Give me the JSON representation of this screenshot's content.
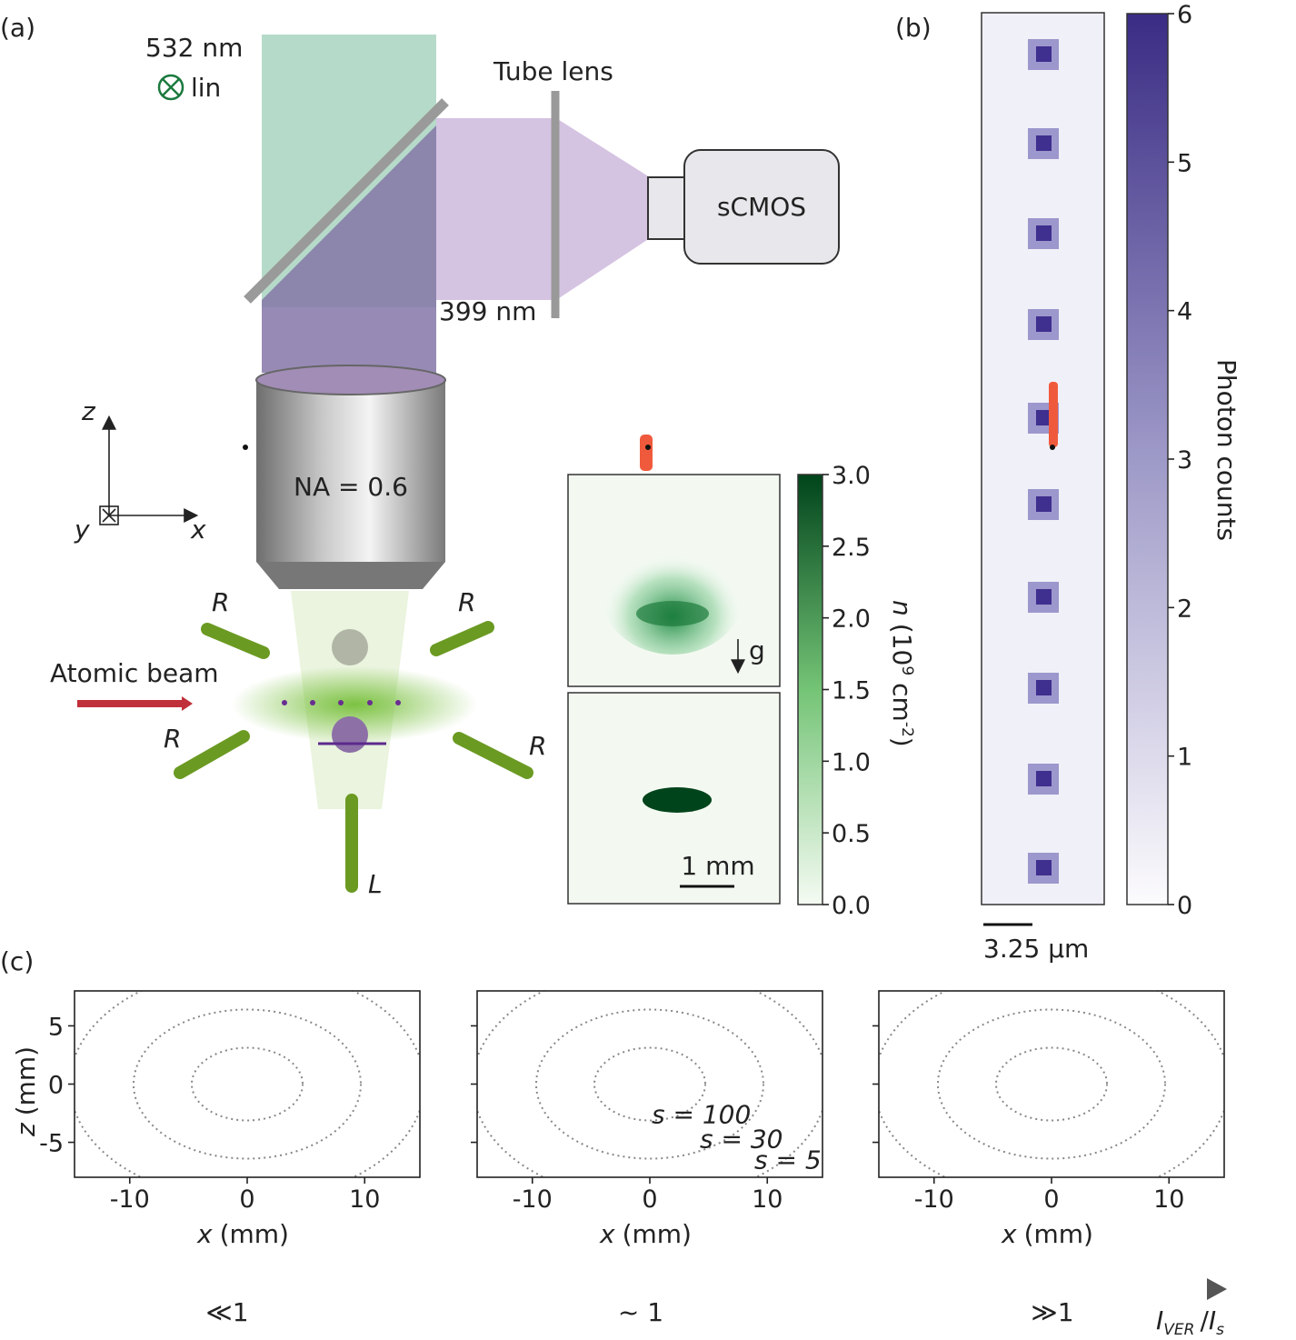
{
  "panel_a": {
    "label": "(a)",
    "wavelength_green": "532 nm",
    "polarization": "lin",
    "tube_lens": "Tube lens",
    "camera": "sCMOS",
    "wavelength_blue": "399 nm",
    "objective": "NA = 0.6",
    "axes": {
      "z": "z",
      "y": "y",
      "x": "x"
    },
    "beam_labels": [
      "R",
      "R",
      "R",
      "R",
      "L"
    ],
    "atomic_beam": "Atomic beam",
    "gravity": "g",
    "scale_bar": "1 mm",
    "colorbar": {
      "label": {
        "symbol": "n",
        "prefix": "(10",
        "exponent": "9",
        "unit": "cm",
        "unit_exponent": "-2",
        "suffix": ")"
      },
      "lim": [
        0,
        3
      ],
      "ticks": [
        {
          "value": 0,
          "label": "0.0"
        },
        0.5,
        {
          "value": 1,
          "label": "1.0"
        },
        1.5,
        {
          "value": 2,
          "label": "2.0"
        },
        2.5,
        {
          "value": 3,
          "label": "3.0"
        }
      ]
    }
  },
  "panel_b": {
    "label": "(b)",
    "scale_bar": "3.25 μm",
    "colorbar": {
      "label": "Photon counts",
      "lim": [
        0,
        6
      ],
      "ticks": [
        0,
        1,
        2,
        3,
        4,
        5,
        6
      ]
    }
  },
  "panel_c": {
    "label": "(c)",
    "ylabel": {
      "var": "z",
      "unit": "(mm)"
    },
    "xlim": [
      -14.7,
      14.7
    ],
    "ylim": [
      -8,
      8
    ],
    "xticks": [
      -10,
      0,
      10
    ],
    "yticks": [
      -5,
      0,
      5
    ],
    "plots": [
      {
        "xlabel": {
          "var": "x",
          "unit": "(mm)"
        }
      },
      {
        "xlabel": {
          "var": "x",
          "unit": "(mm)"
        },
        "contour_labels": [
          "s = 100",
          "s = 30",
          "s = 5"
        ]
      },
      {
        "xlabel": {
          "var": "x",
          "unit": "(mm)"
        }
      }
    ],
    "regimes": [
      "≪1",
      "~ 1",
      "≫1"
    ],
    "ratio": {
      "num": "I",
      "num_sub": "VER",
      "sep": "/",
      "den": "I",
      "den_sub": "s"
    }
  }
}
